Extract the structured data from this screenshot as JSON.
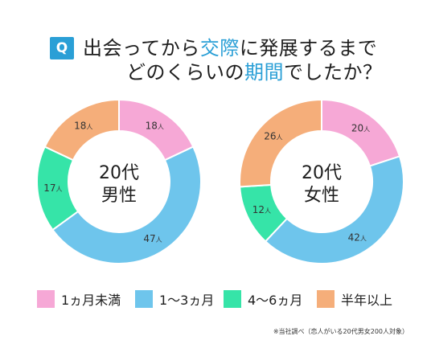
{
  "question": {
    "badge": "Q",
    "line1_part1": "出会ってから",
    "line1_highlight": "交際",
    "line1_part2": "に発展するまで",
    "line2_part1": "どのくらいの",
    "line2_highlight": "期間",
    "line2_part2": "でしたか？"
  },
  "legend": [
    {
      "label": "1ヵ月未満",
      "color": "#f6a8d6"
    },
    {
      "label": "1〜3ヵ月",
      "color": "#6ec5ec"
    },
    {
      "label": "4〜6ヵ月",
      "color": "#36e4a8"
    },
    {
      "label": "半年以上",
      "color": "#f5ae7a"
    }
  ],
  "footnote": "※当社調べ（恋人がいる20代男女200人対象）",
  "chart_data": [
    {
      "type": "pie",
      "center_label_line1": "20代",
      "center_label_line2": "男性",
      "categories": [
        "1ヵ月未満",
        "1〜3ヵ月",
        "4〜6ヵ月",
        "半年以上"
      ],
      "values": [
        18,
        47,
        17,
        18
      ],
      "value_labels": [
        "18人",
        "47人",
        "17人",
        "18人"
      ],
      "colors": [
        "#f6a8d6",
        "#6ec5ec",
        "#36e4a8",
        "#f5ae7a"
      ]
    },
    {
      "type": "pie",
      "center_label_line1": "20代",
      "center_label_line2": "女性",
      "categories": [
        "1ヵ月未満",
        "1〜3ヵ月",
        "4〜6ヵ月",
        "半年以上"
      ],
      "values": [
        20,
        42,
        12,
        26
      ],
      "value_labels": [
        "20人",
        "42人",
        "12人",
        "26人"
      ],
      "colors": [
        "#f6a8d6",
        "#6ec5ec",
        "#36e4a8",
        "#f5ae7a"
      ]
    }
  ]
}
